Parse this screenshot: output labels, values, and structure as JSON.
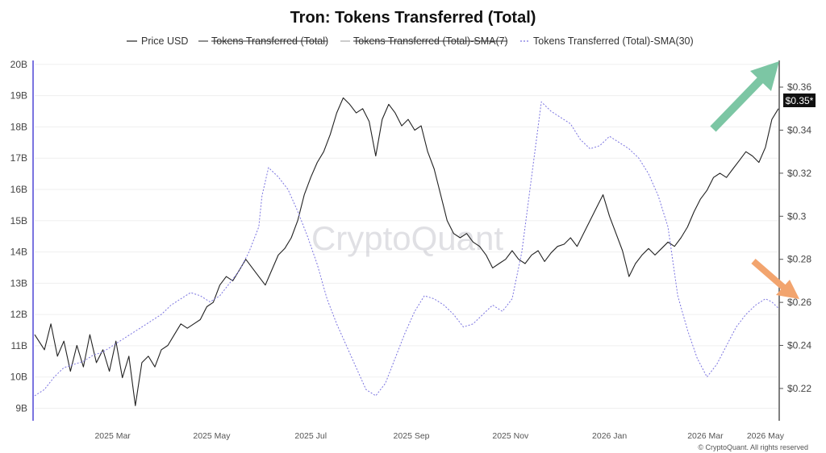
{
  "chart_data": {
    "type": "line",
    "title": "Tron: Tokens Transferred (Total)",
    "legend": [
      {
        "name": "Price USD",
        "style": "solid",
        "color": "#222222",
        "struck": false
      },
      {
        "name": "Tokens Transferred (Total)",
        "style": "solid",
        "color": "#444444",
        "struck": true
      },
      {
        "name": "Tokens Transferred (Total)-SMA(7)",
        "style": "solid",
        "color": "#aaaaaa",
        "struck": true
      },
      {
        "name": "Tokens Transferred (Total)-SMA(30)",
        "style": "dotted",
        "color": "#7b74e0",
        "struck": false
      }
    ],
    "legend_position": "top-center",
    "grid": true,
    "x_ticks": [
      "2025 Mar",
      "2025 May",
      "2025 Jul",
      "2025 Sep",
      "2025 Nov",
      "2026 Jan",
      "2026 Mar",
      "2026 May"
    ],
    "left_axis": {
      "ticks": [
        "9B",
        "10B",
        "11B",
        "12B",
        "13B",
        "14B",
        "15B",
        "16B",
        "17B",
        "18B",
        "19B",
        "20B"
      ],
      "values": [
        9,
        10,
        11,
        12,
        13,
        14,
        15,
        16,
        17,
        18,
        19,
        20
      ],
      "ylim": [
        8.6,
        20.1
      ]
    },
    "right_axis": {
      "ticks": [
        "$0.22",
        "$0.24",
        "$0.26",
        "$0.28",
        "$0.3",
        "$0.32",
        "$0.34",
        "$0.36"
      ],
      "values": [
        0.22,
        0.24,
        0.26,
        0.28,
        0.3,
        0.32,
        0.34,
        0.36
      ],
      "ylim": [
        0.205,
        0.372
      ]
    },
    "price_badge": "$0.35*",
    "x_range_days": [
      0,
      458
    ],
    "series": [
      {
        "name": "Price USD",
        "axis": "right",
        "color": "#222222",
        "x": [
          0,
          6,
          10,
          14,
          18,
          22,
          26,
          30,
          34,
          38,
          42,
          46,
          50,
          54,
          58,
          62,
          64,
          66,
          70,
          74,
          78,
          82,
          86,
          90,
          94,
          98,
          102,
          106,
          110,
          114,
          118,
          122,
          126,
          130,
          134,
          138,
          142,
          146,
          150,
          154,
          158,
          162,
          166,
          170,
          174,
          178,
          182,
          186,
          190,
          194,
          198,
          202,
          206,
          210,
          214,
          218,
          222,
          226,
          230,
          234,
          238,
          242,
          246,
          250,
          254,
          258,
          262,
          266,
          270,
          274,
          278,
          282,
          286,
          290,
          294,
          298,
          302,
          306,
          310,
          314,
          318,
          322,
          326,
          330,
          334,
          338,
          342,
          346,
          350,
          354,
          358,
          362,
          366,
          370,
          374,
          378,
          382,
          386,
          390,
          394,
          398,
          402,
          406,
          410,
          414,
          418,
          422,
          426,
          430,
          434,
          438,
          442,
          446,
          450,
          454,
          458
        ],
        "values": [
          0.245,
          0.238,
          0.25,
          0.235,
          0.242,
          0.228,
          0.24,
          0.23,
          0.245,
          0.232,
          0.238,
          0.228,
          0.242,
          0.225,
          0.235,
          0.212,
          0.222,
          0.232,
          0.235,
          0.23,
          0.238,
          0.24,
          0.245,
          0.25,
          0.248,
          0.25,
          0.252,
          0.258,
          0.26,
          0.268,
          0.272,
          0.27,
          0.275,
          0.28,
          0.276,
          0.272,
          0.268,
          0.275,
          0.282,
          0.285,
          0.29,
          0.298,
          0.31,
          0.318,
          0.325,
          0.33,
          0.338,
          0.348,
          0.355,
          0.352,
          0.348,
          0.35,
          0.344,
          0.328,
          0.345,
          0.352,
          0.348,
          0.342,
          0.345,
          0.34,
          0.342,
          0.33,
          0.322,
          0.31,
          0.298,
          0.292,
          0.29,
          0.292,
          0.288,
          0.286,
          0.282,
          0.276,
          0.278,
          0.28,
          0.284,
          0.28,
          0.278,
          0.282,
          0.284,
          0.279,
          0.283,
          0.286,
          0.287,
          0.29,
          0.286,
          0.292,
          0.298,
          0.304,
          0.31,
          0.3,
          0.292,
          0.284,
          0.272,
          0.278,
          0.282,
          0.285,
          0.282,
          0.285,
          0.288,
          0.286,
          0.29,
          0.295,
          0.302,
          0.308,
          0.312,
          0.318,
          0.32,
          0.318,
          0.322,
          0.326,
          0.33,
          0.328,
          0.325,
          0.332,
          0.345,
          0.35
        ]
      },
      {
        "name": "Tokens Transferred (Total)-SMA(30)",
        "axis": "left",
        "color": "#7b74e0",
        "x": [
          0,
          6,
          12,
          18,
          24,
          30,
          36,
          42,
          48,
          54,
          60,
          66,
          72,
          78,
          84,
          90,
          96,
          102,
          108,
          114,
          120,
          126,
          132,
          138,
          140,
          144,
          150,
          156,
          162,
          168,
          174,
          180,
          186,
          192,
          198,
          204,
          210,
          216,
          222,
          228,
          234,
          240,
          246,
          252,
          258,
          264,
          270,
          276,
          282,
          288,
          294,
          300,
          306,
          312,
          318,
          324,
          330,
          336,
          342,
          348,
          354,
          360,
          366,
          372,
          378,
          384,
          390,
          396,
          402,
          408,
          414,
          420,
          426,
          432,
          438,
          444,
          450,
          454,
          458
        ],
        "values": [
          9.4,
          9.6,
          10.0,
          10.3,
          10.4,
          10.5,
          10.7,
          10.8,
          11.0,
          11.2,
          11.4,
          11.6,
          11.8,
          12.0,
          12.3,
          12.5,
          12.7,
          12.6,
          12.4,
          12.6,
          13.0,
          13.4,
          14.0,
          14.8,
          15.8,
          16.7,
          16.4,
          16.0,
          15.3,
          14.5,
          13.6,
          12.5,
          11.7,
          11.0,
          10.3,
          9.6,
          9.4,
          9.8,
          10.6,
          11.4,
          12.1,
          12.6,
          12.5,
          12.3,
          12.0,
          11.6,
          11.7,
          12.0,
          12.3,
          12.1,
          12.5,
          14.0,
          16.4,
          18.8,
          18.5,
          18.3,
          18.1,
          17.6,
          17.3,
          17.4,
          17.7,
          17.5,
          17.3,
          17.0,
          16.5,
          15.8,
          14.8,
          12.6,
          11.5,
          10.6,
          10.0,
          10.4,
          11.0,
          11.6,
          12.0,
          12.3,
          12.5,
          12.4,
          12.2
        ]
      }
    ]
  },
  "watermark": "CryptoQuant",
  "copyright": "© CryptoQuant. All rights reserved",
  "annotations": [
    {
      "name": "up-trend-arrow",
      "color": "#7cc6a4"
    },
    {
      "name": "down-trend-arrow",
      "color": "#f2a46e"
    }
  ]
}
